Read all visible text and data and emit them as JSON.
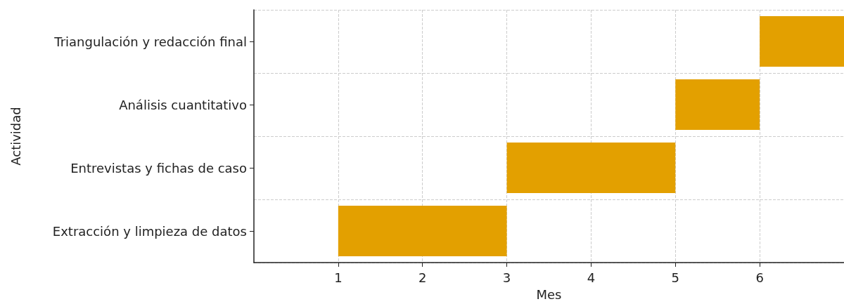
{
  "chart_data": {
    "type": "bar",
    "orientation": "horizontal",
    "xlabel": "Mes",
    "ylabel": "Actividad",
    "categories": [
      "Triangulación y redacción final",
      "Análisis cuantitativo",
      "Entrevistas y fichas de caso",
      "Extracción y limpieza de datos"
    ],
    "base": [
      6,
      5,
      3,
      1
    ],
    "values": [
      1,
      1,
      2,
      2
    ],
    "color": "#e3a000",
    "xlim": [
      0,
      7
    ],
    "xticks": [
      1,
      2,
      3,
      4,
      5,
      6
    ],
    "grid": true
  }
}
